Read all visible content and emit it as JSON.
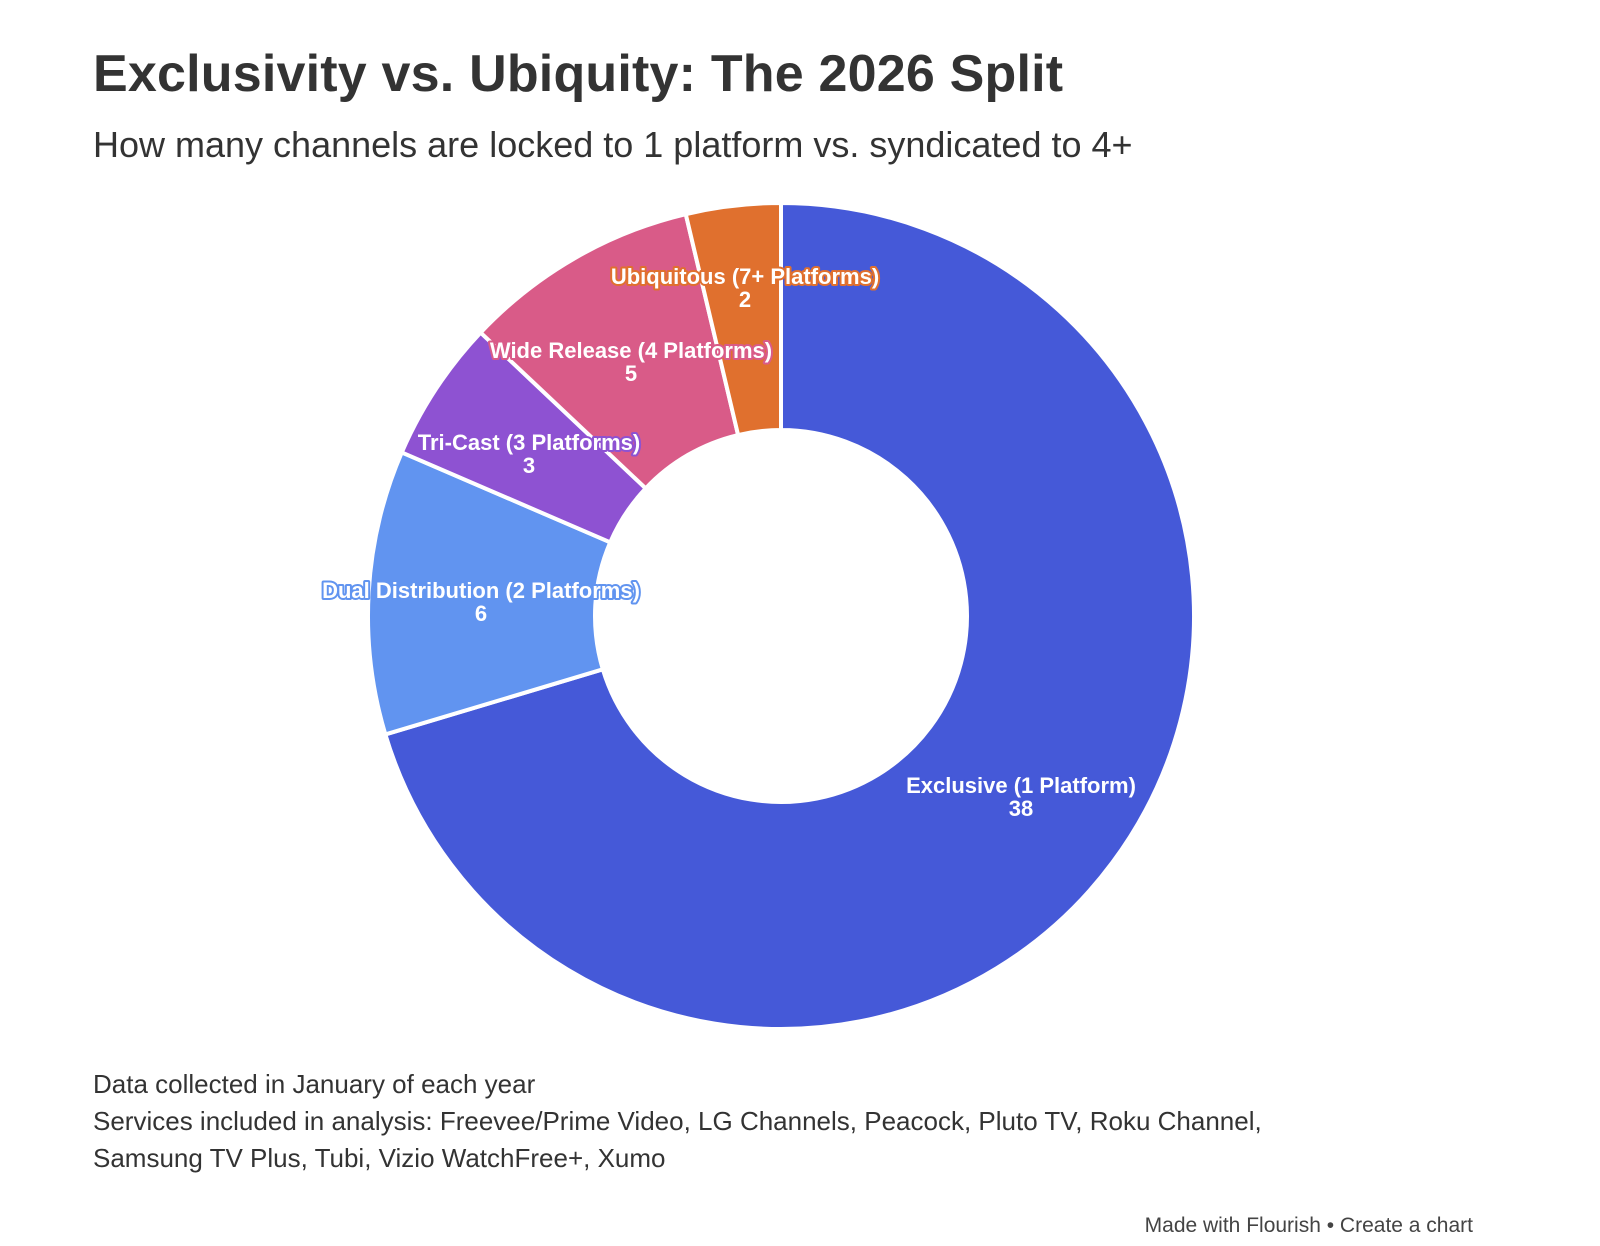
{
  "header": {
    "title": "Exclusivity vs. Ubiquity: The 2026 Split",
    "subtitle": "How many channels are locked to 1 platform vs. syndicated to 4+"
  },
  "chart_data": {
    "type": "pie",
    "variant": "donut",
    "start": "top",
    "direction": "clockwise",
    "legend": "none",
    "labels_on_slices": true,
    "categories": [
      "Exclusive (1 Platform)",
      "Dual Distribution (2 Platforms)",
      "Tri-Cast (3 Platforms)",
      "Wide Release (4 Platforms)",
      "Ubiquitous (7+ Platforms)"
    ],
    "values": [
      38,
      6,
      3,
      5,
      2
    ],
    "colors": [
      "#4559d8",
      "#6194f0",
      "#8e52d2",
      "#d95b88",
      "#e0702e"
    ]
  },
  "notes": {
    "line1": "Data collected in January of each year",
    "line2": "Services included in analysis: Freevee/Prime Video, LG Channels, Peacock, Pluto TV, Roku Channel,",
    "line3": "Samsung TV Plus, Tubi, Vizio WatchFree+, Xumo"
  },
  "footer": {
    "made_with": "Made with Flourish",
    "separator": " • ",
    "create": "Create a chart"
  }
}
